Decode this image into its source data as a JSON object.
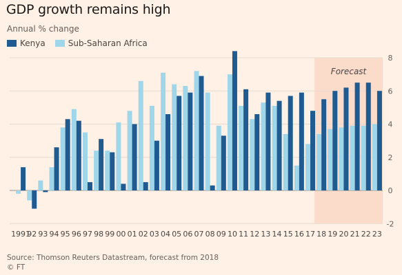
{
  "title": "GDP growth remains high",
  "subtitle": "Annual % change",
  "source": "Source: Thomson Reuters Datastream, forecast from 2018",
  "credit": "© FT",
  "colors": {
    "kenya": "#1f5a91",
    "ssa": "#9fd6ea",
    "forecast_band": "#fbdccb",
    "grid": "#e6d9ce",
    "axis": "#9a908a"
  },
  "chart_data": {
    "type": "bar",
    "categories": [
      "1991",
      "92",
      "93",
      "94",
      "95",
      "96",
      "97",
      "98",
      "99",
      "00",
      "01",
      "02",
      "03",
      "04",
      "05",
      "06",
      "07",
      "08",
      "09",
      "10",
      "11",
      "12",
      "13",
      "14",
      "15",
      "16",
      "17",
      "18",
      "19",
      "20",
      "21",
      "22",
      "23"
    ],
    "series": [
      {
        "name": "Kenya",
        "values": [
          1.4,
          -1.1,
          -0.1,
          2.6,
          4.3,
          4.2,
          0.5,
          3.1,
          2.3,
          0.4,
          4.0,
          0.5,
          3.0,
          4.6,
          5.7,
          5.9,
          6.9,
          0.3,
          3.3,
          8.4,
          6.1,
          4.6,
          5.9,
          5.4,
          5.7,
          5.9,
          4.8,
          5.5,
          6.0,
          6.2,
          6.5,
          6.5,
          6.0
        ]
      },
      {
        "name": "Sub-Saharan Africa",
        "values": [
          -0.2,
          -0.6,
          0.6,
          1.4,
          3.8,
          4.9,
          3.5,
          2.4,
          2.4,
          4.1,
          4.8,
          6.6,
          5.1,
          7.1,
          6.4,
          6.3,
          7.2,
          5.9,
          3.9,
          7.0,
          5.1,
          4.3,
          5.3,
          5.1,
          3.4,
          1.5,
          2.8,
          3.4,
          3.7,
          3.8,
          3.9,
          3.9,
          4.0
        ]
      }
    ],
    "ylim": [
      -2,
      8
    ],
    "yticks": [
      -2,
      0,
      2,
      4,
      6,
      8
    ],
    "forecast_label": "Forecast",
    "forecast_start": "18",
    "legend": "top-left",
    "grid": true
  }
}
